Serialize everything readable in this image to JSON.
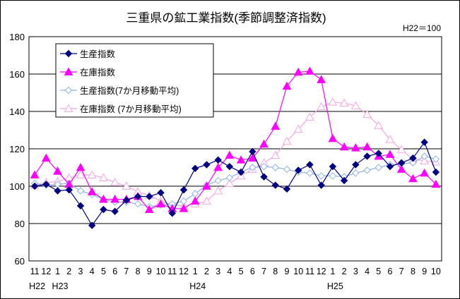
{
  "chart_data": {
    "type": "line",
    "title": "三重県の鉱工業指数(季節調整済指数)",
    "base_note": "H22＝100",
    "ylim": [
      60,
      180
    ],
    "yticks": [
      60,
      80,
      100,
      120,
      140,
      160,
      180
    ],
    "grid": true,
    "legend_position": "top-left",
    "categories": [
      "11",
      "12",
      "1",
      "2",
      "3",
      "4",
      "5",
      "6",
      "7",
      "8",
      "9",
      "10",
      "11",
      "12",
      "1",
      "2",
      "3",
      "4",
      "5",
      "6",
      "7",
      "8",
      "9",
      "10",
      "11",
      "12",
      "1",
      "2",
      "3",
      "4",
      "5",
      "6",
      "7",
      "8",
      "9",
      "10"
    ],
    "era_labels": [
      {
        "index": 0,
        "text": "H22"
      },
      {
        "index": 2,
        "text": "H23"
      },
      {
        "index": 14,
        "text": "H24"
      },
      {
        "index": 26,
        "text": "H25"
      }
    ],
    "series": [
      {
        "name": "生産指数",
        "color": "#000080",
        "marker": "diamond-filled",
        "values": [
          100.0,
          101.0,
          97.5,
          98.0,
          89.5,
          79.0,
          87.5,
          86.5,
          92.5,
          94.5,
          94.5,
          96.5,
          85.5,
          98.0,
          109.5,
          111.5,
          114.0,
          110.5,
          107.5,
          118.5,
          105.0,
          100.5,
          98.5,
          108.5,
          111.5,
          100.5,
          110.5,
          103.0,
          111.5,
          116.0,
          117.5,
          110.5,
          112.5,
          115.0,
          123.5,
          107.5
        ]
      },
      {
        "name": "在庫指数",
        "color": "#ff00ff",
        "marker": "triangle-filled",
        "values": [
          106.0,
          115.0,
          108.0,
          101.0,
          110.0,
          97.0,
          93.0,
          93.0,
          93.0,
          94.5,
          87.5,
          90.5,
          88.0,
          88.0,
          92.0,
          100.0,
          110.0,
          116.5,
          114.0,
          115.0,
          122.5,
          132.0,
          153.5,
          161.0,
          161.5,
          157.0,
          125.5,
          121.0,
          120.5,
          121.0,
          116.0,
          117.0,
          109.0,
          104.0,
          107.0,
          101.0
        ]
      },
      {
        "name": "生産指数(7か月移動平均)",
        "color": "#8db4e2",
        "marker": "diamond-open",
        "values": [
          101.5,
          100.5,
          101.0,
          101.5,
          97.5,
          95.5,
          93.0,
          91.5,
          91.5,
          90.5,
          89.0,
          90.0,
          90.5,
          92.0,
          96.0,
          100.5,
          103.0,
          104.5,
          107.5,
          110.0,
          110.5,
          110.0,
          109.0,
          107.5,
          107.0,
          105.5,
          105.5,
          105.0,
          107.0,
          108.5,
          110.0,
          111.5,
          112.0,
          112.5,
          116.0,
          114.5
        ]
      },
      {
        "name": "在庫指数 (7か月移動平均)",
        "color": "#f4a6e0",
        "marker": "triangle-open",
        "values": [
          100.5,
          102.0,
          102.5,
          104.5,
          106.0,
          106.0,
          104.5,
          102.0,
          100.0,
          97.0,
          95.0,
          92.0,
          90.0,
          89.5,
          90.5,
          92.0,
          97.5,
          101.5,
          105.5,
          109.0,
          112.5,
          116.5,
          124.0,
          130.5,
          137.0,
          142.5,
          145.0,
          144.5,
          143.0,
          138.5,
          132.5,
          125.0,
          119.5,
          114.5,
          113.5,
          113.0
        ]
      }
    ]
  }
}
